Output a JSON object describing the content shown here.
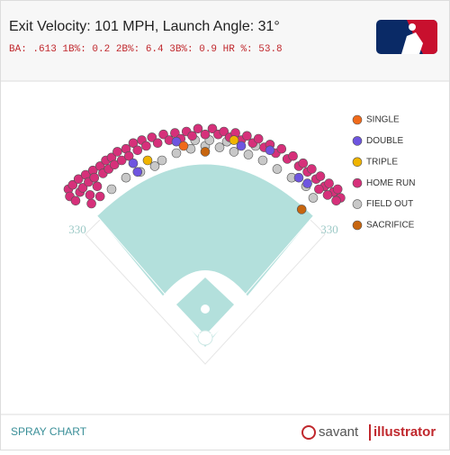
{
  "header": {
    "title": "Exit Velocity: 101 MPH, Launch Angle: 31°",
    "stats": "BA: .613 1B%: 0.2 2B%: 6.4 3B%: 0.9 HR %: 53.8"
  },
  "chart_data": {
    "type": "scatter",
    "wall_labels": [
      "330",
      "330"
    ],
    "series": [
      {
        "name": "FIELD OUT",
        "color": "#c8c8c8",
        "x": [
          60,
          70,
          80,
          95,
          105,
          115,
          125,
          135,
          145,
          155,
          165,
          175,
          185,
          195,
          200,
          90,
          128,
          118,
          140,
          160
        ],
        "y": [
          100,
          92,
          88,
          80,
          75,
          72,
          70,
          71,
          74,
          76,
          80,
          86,
          92,
          98,
          106,
          84,
          66,
          66,
          67,
          70
        ]
      },
      {
        "name": "HOME RUN",
        "color": "#d6307a",
        "x": [
          30,
          31,
          33,
          35,
          37,
          38,
          40,
          42,
          44,
          45,
          47,
          48,
          50,
          52,
          54,
          56,
          58,
          60,
          62,
          64,
          67,
          70,
          72,
          75,
          78,
          81,
          84,
          88,
          92,
          96,
          100,
          104,
          108,
          112,
          116,
          120,
          125,
          130,
          134,
          138,
          142,
          146,
          150,
          154,
          158,
          162,
          166,
          170,
          174,
          178,
          182,
          186,
          190,
          193,
          196,
          199,
          202,
          205,
          208,
          211,
          214,
          217,
          219,
          216,
          210,
          204,
          52,
          46
        ],
        "y": [
          100,
          105,
          97,
          108,
          93,
          102,
          99,
          90,
          95,
          104,
          87,
          92,
          98,
          84,
          89,
          80,
          86,
          78,
          83,
          74,
          80,
          72,
          77,
          68,
          73,
          66,
          70,
          64,
          68,
          62,
          66,
          61,
          65,
          60,
          63,
          58,
          62,
          58,
          62,
          60,
          64,
          61,
          66,
          63,
          68,
          65,
          71,
          69,
          75,
          72,
          79,
          77,
          84,
          82,
          88,
          86,
          93,
          91,
          98,
          96,
          102,
          100,
          106,
          108,
          104,
          100,
          105,
          110
        ]
      },
      {
        "name": "DOUBLE",
        "color": "#6e55e0",
        "x": [
          75,
          78,
          105,
          150,
          170,
          190,
          196
        ],
        "y": [
          82,
          88,
          67,
          70,
          73,
          92,
          96
        ]
      },
      {
        "name": "TRIPLE",
        "color": "#f0b400",
        "x": [
          85,
          145
        ],
        "y": [
          80,
          66
        ]
      },
      {
        "name": "SINGLE",
        "color": "#f06a1a",
        "x": [
          110
        ],
        "y": [
          70
        ]
      },
      {
        "name": "SACRIFICE",
        "color": "#c7650f",
        "x": [
          125,
          192
        ],
        "y": [
          74,
          114
        ]
      }
    ]
  },
  "footer": {
    "label": "SPRAY CHART",
    "brand_left": "savant",
    "brand_right": "illustrator"
  }
}
